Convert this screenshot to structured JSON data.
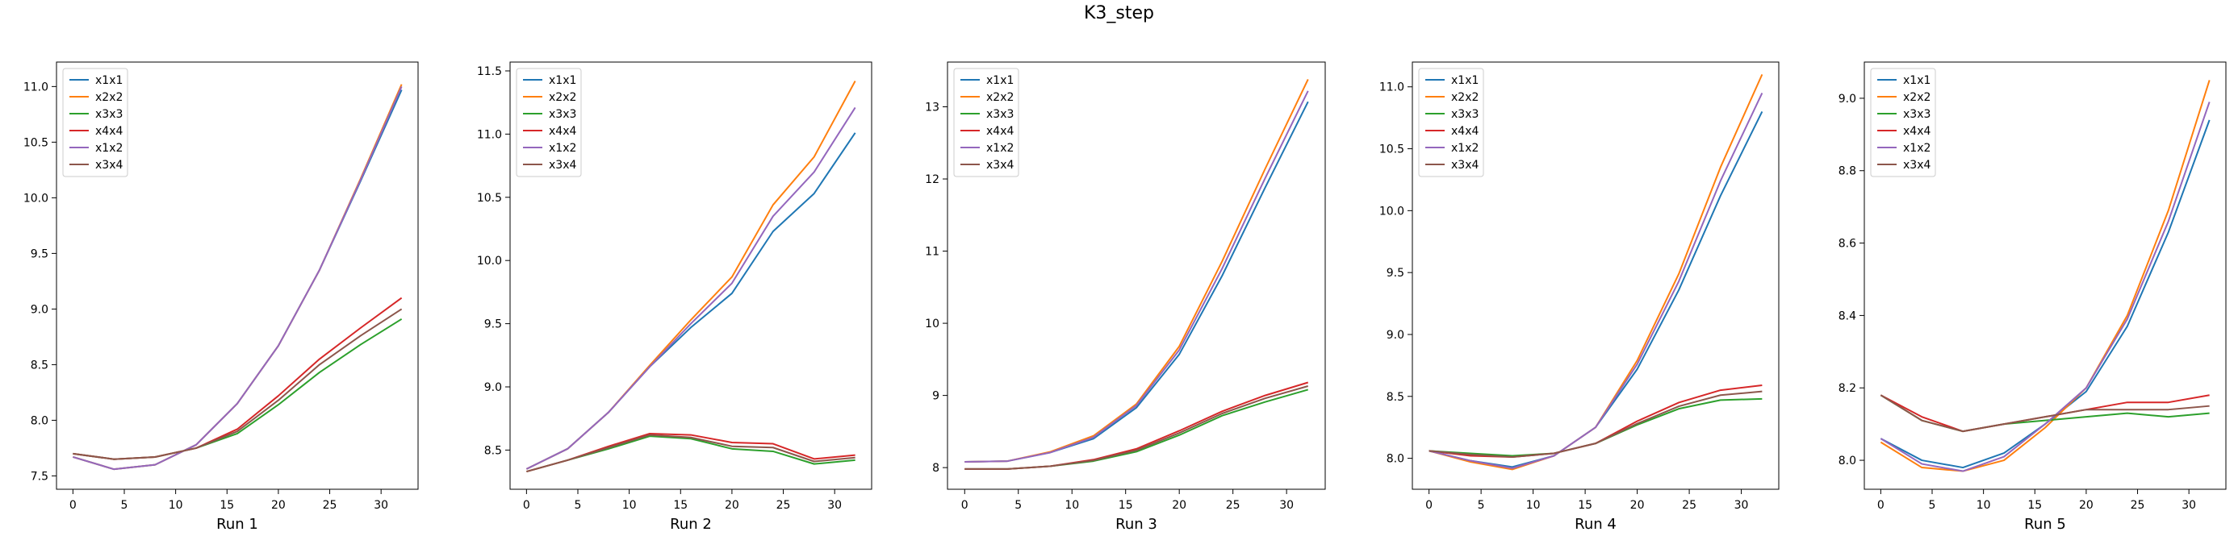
{
  "title": "K3_step",
  "colors": {
    "x1x1": "#1f77b4",
    "x2x2": "#ff7f0e",
    "x3x3": "#2ca02c",
    "x4x4": "#d62728",
    "x1x2": "#9467bd",
    "x3x4": "#8c564b"
  },
  "chart_data": [
    {
      "type": "line",
      "xlabel": "Run 1",
      "ylabel": "",
      "legend_position": "top-left",
      "grid": false,
      "xlim": [
        -1.6,
        33.6
      ],
      "ylim": [
        7.38,
        11.22
      ],
      "xticks": [
        0,
        5,
        10,
        15,
        20,
        25,
        30
      ],
      "yticks": [
        7.5,
        8.0,
        8.5,
        9.0,
        9.5,
        10.0,
        10.5,
        11.0
      ],
      "ytick_labels": [
        "7.5",
        "8.0",
        "8.5",
        "9.0",
        "9.5",
        "10.0",
        "10.5",
        "11.0"
      ],
      "x": [
        0,
        4,
        8,
        12,
        16,
        20,
        24,
        28,
        32
      ],
      "series": [
        {
          "name": "x1x1",
          "values": [
            7.67,
            7.56,
            7.6,
            7.78,
            8.15,
            8.67,
            9.35,
            10.15,
            10.97
          ]
        },
        {
          "name": "x2x2",
          "values": [
            7.67,
            7.56,
            7.6,
            7.78,
            8.15,
            8.67,
            9.35,
            10.17,
            11.02
          ]
        },
        {
          "name": "x3x3",
          "values": [
            7.7,
            7.65,
            7.67,
            7.75,
            7.88,
            8.14,
            8.43,
            8.68,
            8.91
          ]
        },
        {
          "name": "x4x4",
          "values": [
            7.7,
            7.65,
            7.67,
            7.75,
            7.92,
            8.22,
            8.55,
            8.83,
            9.1
          ]
        },
        {
          "name": "x1x2",
          "values": [
            7.67,
            7.56,
            7.6,
            7.78,
            8.15,
            8.67,
            9.35,
            10.16,
            11.0
          ]
        },
        {
          "name": "x3x4",
          "values": [
            7.7,
            7.65,
            7.67,
            7.75,
            7.9,
            8.18,
            8.5,
            8.76,
            9.0
          ]
        }
      ]
    },
    {
      "type": "line",
      "xlabel": "Run 2",
      "ylabel": "",
      "legend_position": "top-left",
      "grid": false,
      "xlim": [
        -1.6,
        33.6
      ],
      "ylim": [
        8.19,
        11.57
      ],
      "xticks": [
        0,
        5,
        10,
        15,
        20,
        25,
        30
      ],
      "yticks": [
        8.5,
        9.0,
        9.5,
        10.0,
        10.5,
        11.0,
        11.5
      ],
      "ytick_labels": [
        "8.5",
        "9.0",
        "9.5",
        "10.0",
        "10.5",
        "11.0",
        "11.5"
      ],
      "x": [
        0,
        4,
        8,
        12,
        16,
        20,
        24,
        28,
        32
      ],
      "series": [
        {
          "name": "x1x1",
          "values": [
            8.35,
            8.51,
            8.8,
            9.16,
            9.47,
            9.74,
            10.23,
            10.53,
            11.01
          ]
        },
        {
          "name": "x2x2",
          "values": [
            8.35,
            8.51,
            8.8,
            9.17,
            9.53,
            9.87,
            10.44,
            10.82,
            11.42
          ]
        },
        {
          "name": "x3x3",
          "values": [
            8.33,
            8.42,
            8.51,
            8.61,
            8.59,
            8.51,
            8.49,
            8.39,
            8.42
          ]
        },
        {
          "name": "x4x4",
          "values": [
            8.33,
            8.42,
            8.53,
            8.63,
            8.62,
            8.56,
            8.55,
            8.43,
            8.46
          ]
        },
        {
          "name": "x1x2",
          "values": [
            8.35,
            8.51,
            8.8,
            9.16,
            9.5,
            9.82,
            10.35,
            10.7,
            11.21
          ]
        },
        {
          "name": "x3x4",
          "values": [
            8.33,
            8.42,
            8.52,
            8.62,
            8.6,
            8.53,
            8.52,
            8.41,
            8.44
          ]
        }
      ]
    },
    {
      "type": "line",
      "xlabel": "Run 3",
      "ylabel": "",
      "legend_position": "top-left",
      "grid": false,
      "xlim": [
        -1.6,
        33.6
      ],
      "ylim": [
        7.7,
        13.62
      ],
      "xticks": [
        0,
        5,
        10,
        15,
        20,
        25,
        30
      ],
      "yticks": [
        8,
        9,
        10,
        11,
        12,
        13
      ],
      "ytick_labels": [
        "8",
        "9",
        "10",
        "11",
        "12",
        "13"
      ],
      "x": [
        0,
        4,
        8,
        12,
        16,
        20,
        24,
        28,
        32
      ],
      "series": [
        {
          "name": "x1x1",
          "values": [
            8.08,
            8.09,
            8.21,
            8.4,
            8.83,
            9.57,
            10.66,
            11.88,
            13.07
          ]
        },
        {
          "name": "x2x2",
          "values": [
            8.08,
            8.09,
            8.22,
            8.44,
            8.88,
            9.68,
            10.86,
            12.14,
            13.38
          ]
        },
        {
          "name": "x3x3",
          "values": [
            7.98,
            7.98,
            8.02,
            8.09,
            8.22,
            8.45,
            8.72,
            8.91,
            9.08
          ]
        },
        {
          "name": "x4x4",
          "values": [
            7.98,
            7.98,
            8.02,
            8.11,
            8.26,
            8.51,
            8.78,
            9.0,
            9.18
          ]
        },
        {
          "name": "x1x2",
          "values": [
            8.08,
            8.09,
            8.21,
            8.42,
            8.86,
            9.63,
            10.76,
            12.01,
            13.22
          ]
        },
        {
          "name": "x3x4",
          "values": [
            7.98,
            7.98,
            8.02,
            8.1,
            8.24,
            8.48,
            8.75,
            8.96,
            9.13
          ]
        }
      ]
    },
    {
      "type": "line",
      "xlabel": "Run 4",
      "ylabel": "",
      "legend_position": "top-left",
      "grid": false,
      "xlim": [
        -1.6,
        33.6
      ],
      "ylim": [
        7.75,
        11.2
      ],
      "xticks": [
        0,
        5,
        10,
        15,
        20,
        25,
        30
      ],
      "yticks": [
        8.0,
        8.5,
        9.0,
        9.5,
        10.0,
        10.5,
        11.0
      ],
      "ytick_labels": [
        "8.0",
        "8.5",
        "9.0",
        "9.5",
        "10.0",
        "10.5",
        "11.0"
      ],
      "x": [
        0,
        4,
        8,
        12,
        16,
        20,
        24,
        28,
        32
      ],
      "series": [
        {
          "name": "x1x1",
          "values": [
            8.06,
            7.98,
            7.93,
            8.02,
            8.25,
            8.72,
            9.36,
            10.12,
            10.8
          ]
        },
        {
          "name": "x2x2",
          "values": [
            8.06,
            7.97,
            7.91,
            8.02,
            8.25,
            8.79,
            9.49,
            10.35,
            11.1
          ]
        },
        {
          "name": "x3x3",
          "values": [
            8.06,
            8.04,
            8.02,
            8.04,
            8.12,
            8.27,
            8.4,
            8.47,
            8.48
          ]
        },
        {
          "name": "x4x4",
          "values": [
            8.06,
            8.02,
            8.01,
            8.04,
            8.12,
            8.3,
            8.45,
            8.55,
            8.59
          ]
        },
        {
          "name": "x1x2",
          "values": [
            8.06,
            7.98,
            7.92,
            8.02,
            8.25,
            8.76,
            9.43,
            10.24,
            10.95
          ]
        },
        {
          "name": "x3x4",
          "values": [
            8.06,
            8.03,
            8.01,
            8.04,
            8.12,
            8.28,
            8.42,
            8.51,
            8.54
          ]
        }
      ]
    },
    {
      "type": "line",
      "xlabel": "Run 5",
      "ylabel": "",
      "legend_position": "top-left",
      "grid": false,
      "xlim": [
        -1.6,
        33.6
      ],
      "ylim": [
        7.92,
        9.1
      ],
      "xticks": [
        0,
        5,
        10,
        15,
        20,
        25,
        30
      ],
      "yticks": [
        8.0,
        8.2,
        8.4,
        8.6,
        8.8,
        9.0
      ],
      "ytick_labels": [
        "8.0",
        "8.2",
        "8.4",
        "8.6",
        "8.8",
        "9.0"
      ],
      "x": [
        0,
        4,
        8,
        12,
        16,
        20,
        24,
        28,
        32
      ],
      "series": [
        {
          "name": "x1x1",
          "values": [
            8.06,
            8.0,
            7.98,
            8.02,
            8.1,
            8.19,
            8.37,
            8.63,
            8.94
          ]
        },
        {
          "name": "x2x2",
          "values": [
            8.05,
            7.98,
            7.97,
            8.0,
            8.09,
            8.2,
            8.4,
            8.69,
            9.05
          ]
        },
        {
          "name": "x3x3",
          "values": [
            8.18,
            8.11,
            8.08,
            8.1,
            8.11,
            8.12,
            8.13,
            8.12,
            8.13
          ]
        },
        {
          "name": "x4x4",
          "values": [
            8.18,
            8.12,
            8.08,
            8.1,
            8.12,
            8.14,
            8.16,
            8.16,
            8.18
          ]
        },
        {
          "name": "x1x2",
          "values": [
            8.06,
            7.99,
            7.97,
            8.01,
            8.1,
            8.2,
            8.39,
            8.66,
            8.99
          ]
        },
        {
          "name": "x3x4",
          "values": [
            8.18,
            8.11,
            8.08,
            8.1,
            8.12,
            8.14,
            8.14,
            8.14,
            8.15
          ]
        }
      ]
    }
  ]
}
